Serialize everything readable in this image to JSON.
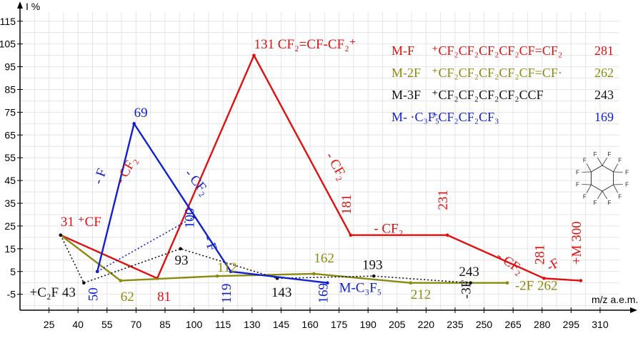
{
  "chart_data": {
    "type": "line",
    "xlabel": "m/z a.e.m.",
    "ylabel": "I %",
    "xlim": [
      10,
      320
    ],
    "ylim": [
      -12,
      119
    ],
    "x_ticks": [
      25,
      40,
      55,
      70,
      85,
      100,
      115,
      130,
      145,
      160,
      175,
      190,
      205,
      220,
      235,
      250,
      265,
      280,
      295,
      310
    ],
    "y_ticks": [
      115,
      105,
      95,
      85,
      75,
      65,
      55,
      45,
      35,
      25,
      15,
      5,
      -5
    ],
    "grid": true,
    "legend_position": "top-right",
    "colors": {
      "red": "#e01010",
      "olive": "#8a8a10",
      "black": "#111111",
      "blue": "#1020d0"
    },
    "series": [
      {
        "name": "M-F",
        "ion": "+CF2CF2CF2CF2CF=CF2",
        "mass": "281",
        "color": "red",
        "style": "solid",
        "x": [
          31,
          81,
          131,
          181,
          231,
          281,
          300
        ],
        "y": [
          21,
          2,
          100,
          21,
          21,
          2,
          1
        ]
      },
      {
        "name": "M-2F",
        "ion": "+CF2CF2CF2CF2CF=CF·",
        "mass": "262",
        "color": "olive",
        "style": "solid",
        "x": [
          31,
          62,
          112,
          162,
          212,
          262
        ],
        "y": [
          21,
          1,
          3,
          4,
          0,
          0
        ]
      },
      {
        "name": "M-3F",
        "ion": "+CF2CF2CF2CF2CCF",
        "mass": "243",
        "color": "black",
        "style": "dotted",
        "x": [
          31,
          43,
          93,
          143,
          193,
          243
        ],
        "y": [
          21,
          0,
          15,
          2,
          3,
          0
        ]
      },
      {
        "name": "M- ·C3F5",
        "ion": "+CF2CF2CF3",
        "mass": "169",
        "color": "blue",
        "style": "solid",
        "x": [
          50,
          69,
          119,
          169
        ],
        "y": [
          5,
          70,
          5,
          0
        ]
      },
      {
        "name": "",
        "color": "blue",
        "style": "dotted",
        "x": [
          50,
          100
        ],
        "y": [
          5,
          29
        ]
      }
    ],
    "annotations": [
      {
        "text": "131 CF₂=CF-CF₂⁺",
        "x": 131,
        "y": 103,
        "color": "red"
      },
      {
        "text": "31 ⁺CF",
        "x": 31,
        "y": 25,
        "color": "red"
      },
      {
        "text": "69",
        "x": 69,
        "y": 73,
        "color": "blue"
      },
      {
        "text": "100",
        "x": 100,
        "y": 24,
        "color": "blue",
        "rotate": -90
      },
      {
        "text": "50",
        "x": 50,
        "y": -8,
        "color": "blue",
        "rotate": -90
      },
      {
        "text": "119",
        "x": 119,
        "y": -9,
        "color": "blue",
        "rotate": -90
      },
      {
        "text": "169",
        "x": 169,
        "y": -9,
        "color": "blue",
        "rotate": -90
      },
      {
        "text": "M-C₃F₅",
        "x": 175,
        "y": -4,
        "color": "blue"
      },
      {
        "text": "81",
        "x": 81,
        "y": -8,
        "color": "red"
      },
      {
        "text": "181",
        "x": 181,
        "y": 30,
        "color": "red",
        "rotate": -90
      },
      {
        "text": "231",
        "x": 231,
        "y": 32,
        "color": "red",
        "rotate": -90
      },
      {
        "text": "281",
        "x": 281,
        "y": 8,
        "color": "red",
        "rotate": -90
      },
      {
        "text": "-F",
        "x": 284,
        "y": 5,
        "color": "red",
        "rotate": -30
      },
      {
        "text": "+M 300",
        "x": 300,
        "y": 8,
        "color": "red",
        "rotate": -90
      },
      {
        "text": "- CF₂",
        "x": 193,
        "y": 22,
        "color": "red"
      },
      {
        "text": "- CF₂",
        "x": 63,
        "y": 43,
        "color": "red",
        "rotate": -60
      },
      {
        "text": "- CF₂",
        "x": 168,
        "y": 56,
        "color": "red",
        "rotate": 60
      },
      {
        "text": "- CF₂",
        "x": 256,
        "y": 11,
        "color": "red",
        "rotate": 35
      },
      {
        "text": "- F",
        "x": 52,
        "y": 43,
        "color": "blue",
        "rotate": -70
      },
      {
        "text": "- CF₂",
        "x": 95,
        "y": 48,
        "color": "blue",
        "rotate": 50
      },
      {
        "text": "- F",
        "x": 105,
        "y": 20,
        "color": "blue",
        "rotate": 70
      },
      {
        "text": "62",
        "x": 62,
        "y": -8,
        "color": "olive"
      },
      {
        "text": "112",
        "x": 112,
        "y": 5,
        "color": "olive"
      },
      {
        "text": "162",
        "x": 162,
        "y": 9,
        "color": "olive"
      },
      {
        "text": "212",
        "x": 212,
        "y": -7,
        "color": "olive"
      },
      {
        "text": "-2F 262",
        "x": 266,
        "y": -3,
        "color": "olive"
      },
      {
        "text": "93",
        "x": 90,
        "y": 8,
        "color": "black"
      },
      {
        "text": "143",
        "x": 140,
        "y": -6,
        "color": "black"
      },
      {
        "text": "193",
        "x": 187,
        "y": 6,
        "color": "black"
      },
      {
        "text": "243",
        "x": 237,
        "y": 3,
        "color": "black"
      },
      {
        "text": "-3F",
        "x": 243,
        "y": -7,
        "color": "black",
        "rotate": -90
      },
      {
        "text": "+C₂F 43",
        "x": 15,
        "y": -6,
        "color": "black"
      }
    ]
  }
}
